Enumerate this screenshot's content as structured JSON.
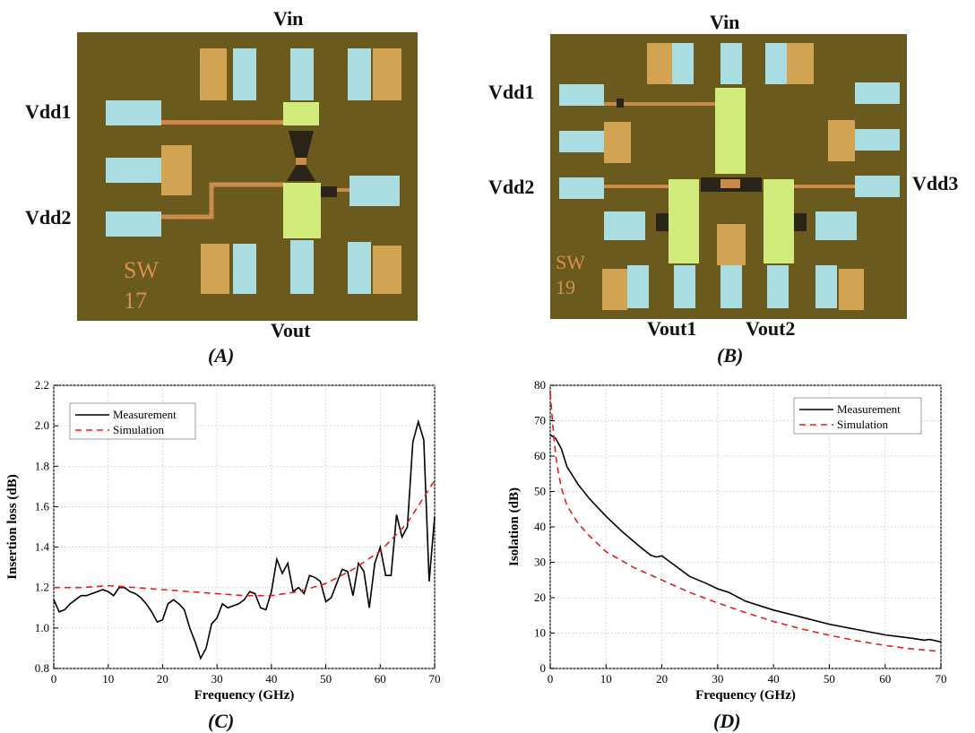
{
  "panels": {
    "A": {
      "caption": "(A)",
      "labels": {
        "top": "Vin",
        "left1": "Vdd1",
        "left2": "Vdd2",
        "bottom": "Vout"
      },
      "chip_marking": [
        "SW",
        "17"
      ]
    },
    "B": {
      "caption": "(B)",
      "labels": {
        "top": "Vin",
        "left1": "Vdd1",
        "left2": "Vdd2",
        "right": "Vdd3",
        "bottom1": "Vout1",
        "bottom2": "Vout2"
      },
      "chip_marking": [
        "SW",
        "19"
      ]
    },
    "C": {
      "caption": "(C)"
    },
    "D": {
      "caption": "(D)"
    }
  },
  "colors": {
    "die": "#6b5a1e",
    "pad": "#a9dde2",
    "pad_gold": "#d3a354",
    "green_block": "#d2ec7b",
    "trace": "#c98a4a",
    "measurement": "#000000",
    "simulation": "#dd2222"
  },
  "chart_data": [
    {
      "type": "line",
      "xlabel": "Frequency (GHz)",
      "ylabel": "Insertion loss (dB)",
      "xlim": [
        0,
        70
      ],
      "ylim": [
        0.8,
        2.2
      ],
      "xticks": [
        "0",
        "10",
        "20",
        "30",
        "40",
        "50",
        "60",
        "70"
      ],
      "yticks": [
        "0.8",
        "1.0",
        "1.2",
        "1.4",
        "1.6",
        "1.8",
        "2.0",
        "2.2"
      ],
      "grid": true,
      "legend_position": "top-left",
      "series": [
        {
          "name": "Measurement",
          "x": [
            0,
            1,
            2,
            3,
            4,
            5,
            6,
            7,
            8,
            9,
            10,
            11,
            12,
            13,
            14,
            15,
            16,
            17,
            18,
            19,
            20,
            21,
            22,
            23,
            24,
            25,
            26,
            27,
            28,
            29,
            30,
            31,
            32,
            33,
            34,
            35,
            36,
            37,
            38,
            39,
            40,
            41,
            42,
            43,
            44,
            45,
            46,
            47,
            48,
            49,
            50,
            51,
            52,
            53,
            54,
            55,
            56,
            57,
            58,
            59,
            60,
            61,
            62,
            63,
            64,
            65,
            66,
            67,
            68,
            69,
            70
          ],
          "y": [
            1.14,
            1.08,
            1.09,
            1.12,
            1.14,
            1.16,
            1.16,
            1.17,
            1.18,
            1.19,
            1.18,
            1.16,
            1.2,
            1.2,
            1.18,
            1.17,
            1.15,
            1.12,
            1.08,
            1.03,
            1.04,
            1.12,
            1.14,
            1.12,
            1.09,
            1.0,
            0.93,
            0.85,
            0.9,
            1.02,
            1.05,
            1.12,
            1.1,
            1.11,
            1.12,
            1.14,
            1.18,
            1.17,
            1.1,
            1.09,
            1.18,
            1.34,
            1.27,
            1.32,
            1.18,
            1.2,
            1.17,
            1.26,
            1.25,
            1.23,
            1.13,
            1.15,
            1.22,
            1.29,
            1.28,
            1.16,
            1.32,
            1.28,
            1.1,
            1.32,
            1.4,
            1.26,
            1.26,
            1.56,
            1.45,
            1.5,
            1.92,
            2.02,
            1.93,
            1.23,
            1.55
          ]
        },
        {
          "name": "Simulation",
          "x": [
            0,
            5,
            10,
            15,
            20,
            25,
            30,
            35,
            40,
            45,
            50,
            55,
            60,
            65,
            70
          ],
          "y": [
            1.2,
            1.2,
            1.21,
            1.2,
            1.19,
            1.18,
            1.17,
            1.16,
            1.16,
            1.18,
            1.22,
            1.29,
            1.38,
            1.52,
            1.73
          ]
        }
      ]
    },
    {
      "type": "line",
      "xlabel": "Frequency (GHz)",
      "ylabel": "Isolation (dB)",
      "xlim": [
        0,
        70
      ],
      "ylim": [
        0,
        80
      ],
      "xticks": [
        "0",
        "10",
        "20",
        "30",
        "40",
        "50",
        "60",
        "70"
      ],
      "yticks": [
        "0",
        "10",
        "20",
        "30",
        "40",
        "50",
        "60",
        "70",
        "80"
      ],
      "grid": true,
      "legend_position": "top-right",
      "series": [
        {
          "name": "Measurement",
          "x": [
            0,
            1,
            2,
            3,
            5,
            7,
            10,
            13,
            16,
            18,
            19,
            20,
            22,
            25,
            28,
            30,
            32,
            35,
            40,
            45,
            50,
            55,
            60,
            65,
            67,
            68,
            70
          ],
          "y": [
            66,
            65,
            62,
            57,
            52,
            48,
            43,
            38.5,
            34.5,
            32,
            31.5,
            31.8,
            29.5,
            26,
            24,
            22.5,
            21.5,
            19,
            16.5,
            14.5,
            12.5,
            11,
            9.5,
            8.5,
            8,
            8.2,
            7.5
          ]
        },
        {
          "name": "Simulation",
          "x": [
            0,
            0.5,
            1,
            1.5,
            2,
            3,
            5,
            7,
            10,
            15,
            20,
            25,
            30,
            35,
            40,
            45,
            50,
            55,
            60,
            65,
            70
          ],
          "y": [
            78,
            68,
            60,
            55,
            51,
            46,
            41,
            37.5,
            33,
            28.5,
            25,
            21.5,
            18.5,
            15.8,
            13.3,
            11.2,
            9.4,
            7.8,
            6.5,
            5.5,
            4.8
          ]
        }
      ]
    }
  ]
}
